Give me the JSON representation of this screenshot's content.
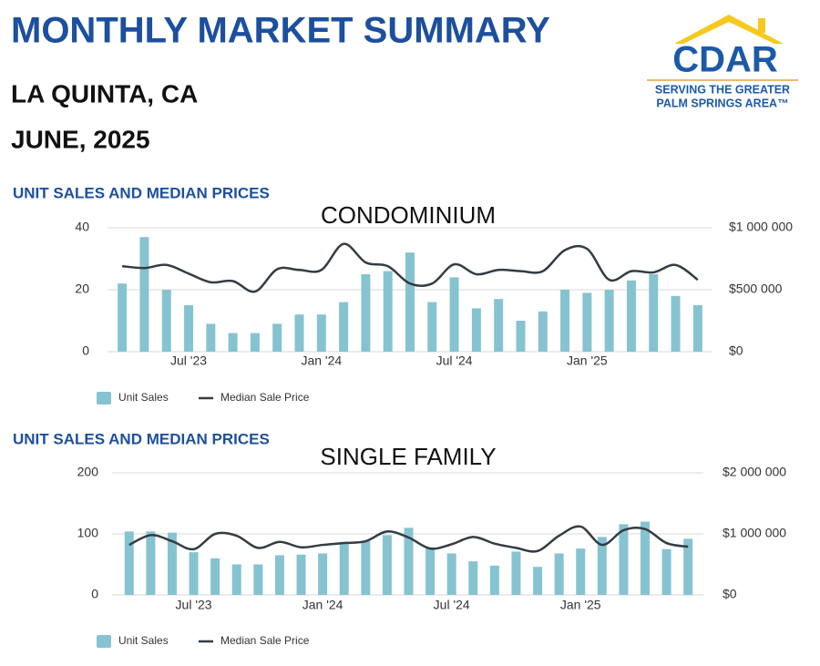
{
  "header": {
    "title": "MONTHLY MARKET SUMMARY",
    "location": "LA QUINTA, CA",
    "date": "JUNE, 2025"
  },
  "logo": {
    "name": "CDAR",
    "line1": "SERVING THE GREATER",
    "line2": "PALM SPRINGS AREA™"
  },
  "chart_data": [
    {
      "type": "combo",
      "heading": "UNIT SALES AND MEDIAN PRICES",
      "title": "CONDOMINIUM",
      "categories": [
        null,
        null,
        null,
        "Jul '23",
        null,
        null,
        null,
        null,
        null,
        "Jan '24",
        null,
        null,
        null,
        null,
        null,
        "Jul '24",
        null,
        null,
        null,
        null,
        null,
        "Jan '25",
        null,
        null,
        null,
        null,
        null
      ],
      "series": [
        {
          "name": "Unit Sales",
          "type": "bar",
          "color": "#86c3d1",
          "values": [
            22,
            37,
            20,
            15,
            9,
            6,
            6,
            9,
            12,
            12,
            16,
            25,
            26,
            32,
            16,
            24,
            14,
            17,
            10,
            13,
            20,
            19,
            20,
            23,
            25,
            18,
            15
          ]
        },
        {
          "name": "Median Sale Price",
          "type": "line",
          "axis": "y2",
          "color": "#333c44",
          "values": [
            690000,
            675000,
            700000,
            630000,
            560000,
            570000,
            485000,
            665000,
            660000,
            660000,
            870000,
            720000,
            690000,
            550000,
            550000,
            705000,
            625000,
            660000,
            650000,
            650000,
            820000,
            830000,
            580000,
            650000,
            640000,
            700000,
            580000
          ]
        }
      ],
      "ylim": [
        0,
        40
      ],
      "yticks": [
        0,
        20,
        40
      ],
      "y2lim": [
        0,
        1000000
      ],
      "y2ticks": [
        {
          "value": 0,
          "label": "$0"
        },
        {
          "value": 500000,
          "label": "$500 000"
        },
        {
          "value": 1000000,
          "label": "$1 000 000"
        }
      ],
      "grid": true
    },
    {
      "type": "combo",
      "heading": "UNIT SALES AND MEDIAN PRICES",
      "title": "SINGLE FAMILY",
      "categories": [
        null,
        null,
        null,
        "Jul '23",
        null,
        null,
        null,
        null,
        null,
        "Jan '24",
        null,
        null,
        null,
        null,
        null,
        "Jul '24",
        null,
        null,
        null,
        null,
        null,
        "Jan '25",
        null,
        null,
        null,
        null,
        null
      ],
      "series": [
        {
          "name": "Unit Sales",
          "type": "bar",
          "color": "#86c3d1",
          "values": [
            104,
            104,
            102,
            70,
            60,
            50,
            50,
            65,
            66,
            68,
            85,
            88,
            98,
            110,
            78,
            68,
            55,
            48,
            71,
            46,
            68,
            76,
            95,
            116,
            120,
            75,
            92
          ]
        },
        {
          "name": "Median Sale Price",
          "type": "line",
          "axis": "y2",
          "color": "#333c44",
          "values": [
            820000,
            980000,
            880000,
            750000,
            1000000,
            970000,
            770000,
            870000,
            780000,
            820000,
            850000,
            880000,
            1040000,
            940000,
            760000,
            830000,
            950000,
            840000,
            770000,
            720000,
            970000,
            1120000,
            820000,
            1060000,
            1080000,
            850000,
            790000
          ]
        }
      ],
      "ylim": [
        0,
        200
      ],
      "yticks": [
        0,
        100,
        200
      ],
      "y2lim": [
        0,
        2000000
      ],
      "y2ticks": [
        {
          "value": 0,
          "label": "$0"
        },
        {
          "value": 1000000,
          "label": "$1 000 000"
        },
        {
          "value": 2000000,
          "label": "$2 000 000"
        }
      ],
      "grid": true
    }
  ]
}
